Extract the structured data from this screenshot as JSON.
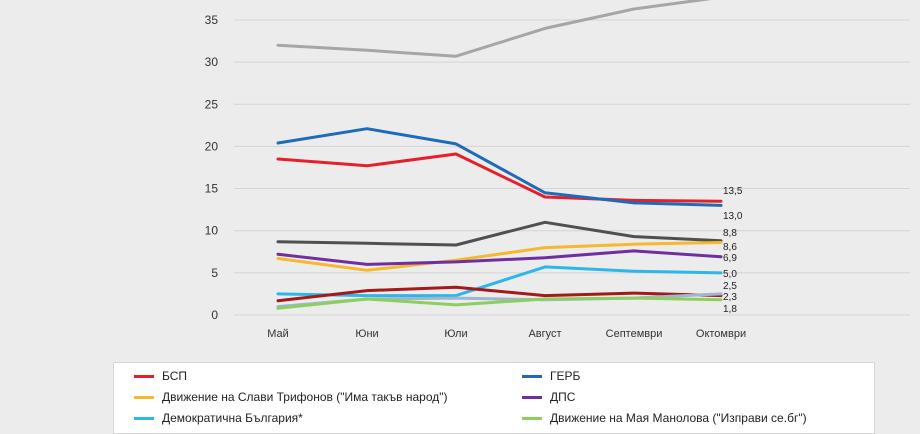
{
  "chart_data": {
    "type": "line",
    "title": "",
    "xlabel": "",
    "ylabel": "",
    "categories": [
      "Май",
      "Юни",
      "Юли",
      "Август",
      "Септември",
      "Октомври"
    ],
    "y_ticks": [
      "0",
      "5",
      "10",
      "15",
      "20",
      "25",
      "30",
      "35"
    ],
    "ylim": [
      0,
      38
    ],
    "grid": true,
    "legend_position": "bottom",
    "series": [
      {
        "name": "",
        "color": "#a6a6a6",
        "values": [
          32.0,
          31.4,
          30.7,
          34.0,
          36.3,
          37.7
        ],
        "end_label": ""
      },
      {
        "name": "БСП",
        "color": "#e6202a",
        "values": [
          18.5,
          17.7,
          19.1,
          14.0,
          13.6,
          13.5
        ],
        "end_label": "13,5"
      },
      {
        "name": "ГЕРБ",
        "color": "#1f6bb8",
        "values": [
          20.4,
          22.1,
          20.3,
          14.5,
          13.3,
          13.0
        ],
        "end_label": "13,0"
      },
      {
        "name": "",
        "color": "#505050",
        "values": [
          8.7,
          8.5,
          8.3,
          11.0,
          9.3,
          8.8
        ],
        "end_label": "8,8"
      },
      {
        "name": "Движение на Слави Трифонов (\"Има такъв народ\")",
        "color": "#f5b82e",
        "values": [
          6.7,
          5.3,
          6.5,
          8.0,
          8.4,
          8.6
        ],
        "end_label": "8,6"
      },
      {
        "name": "ДПС",
        "color": "#6f2fa0",
        "values": [
          7.2,
          6.0,
          6.3,
          6.8,
          7.6,
          6.9
        ],
        "end_label": "6,9"
      },
      {
        "name": "Демократична България*",
        "color": "#2cb7e8",
        "values": [
          2.5,
          2.3,
          2.3,
          5.7,
          5.2,
          5.0
        ],
        "end_label": "5,0"
      },
      {
        "name": "",
        "color": "#a31a1a",
        "values": [
          1.7,
          2.9,
          3.3,
          2.3,
          2.6,
          2.3
        ],
        "end_label": "2,3"
      },
      {
        "name": "",
        "color": "#9fb5d0",
        "values": [
          1.0,
          1.9,
          2.0,
          1.8,
          2.0,
          2.5
        ],
        "end_label": "2,5"
      },
      {
        "name": "Движение на Мая Манолова (\"Изправи се.бг\")",
        "color": "#8ccf5e",
        "values": [
          0.8,
          1.9,
          1.2,
          1.9,
          2.0,
          1.8
        ],
        "end_label": "1,8"
      }
    ]
  },
  "legend": [
    {
      "label": "БСП",
      "color": "#e6202a"
    },
    {
      "label": "ГЕРБ",
      "color": "#1f6bb8"
    },
    {
      "label": "Движение на Слави Трифонов (\"Има такъв народ\")",
      "color": "#f5b82e"
    },
    {
      "label": "ДПС",
      "color": "#6f2fa0"
    },
    {
      "label": "Демократична България*",
      "color": "#2cb7e8"
    },
    {
      "label": "Движение на Мая Манолова (\"Изправи се.бг\")",
      "color": "#8ccf5e"
    }
  ]
}
